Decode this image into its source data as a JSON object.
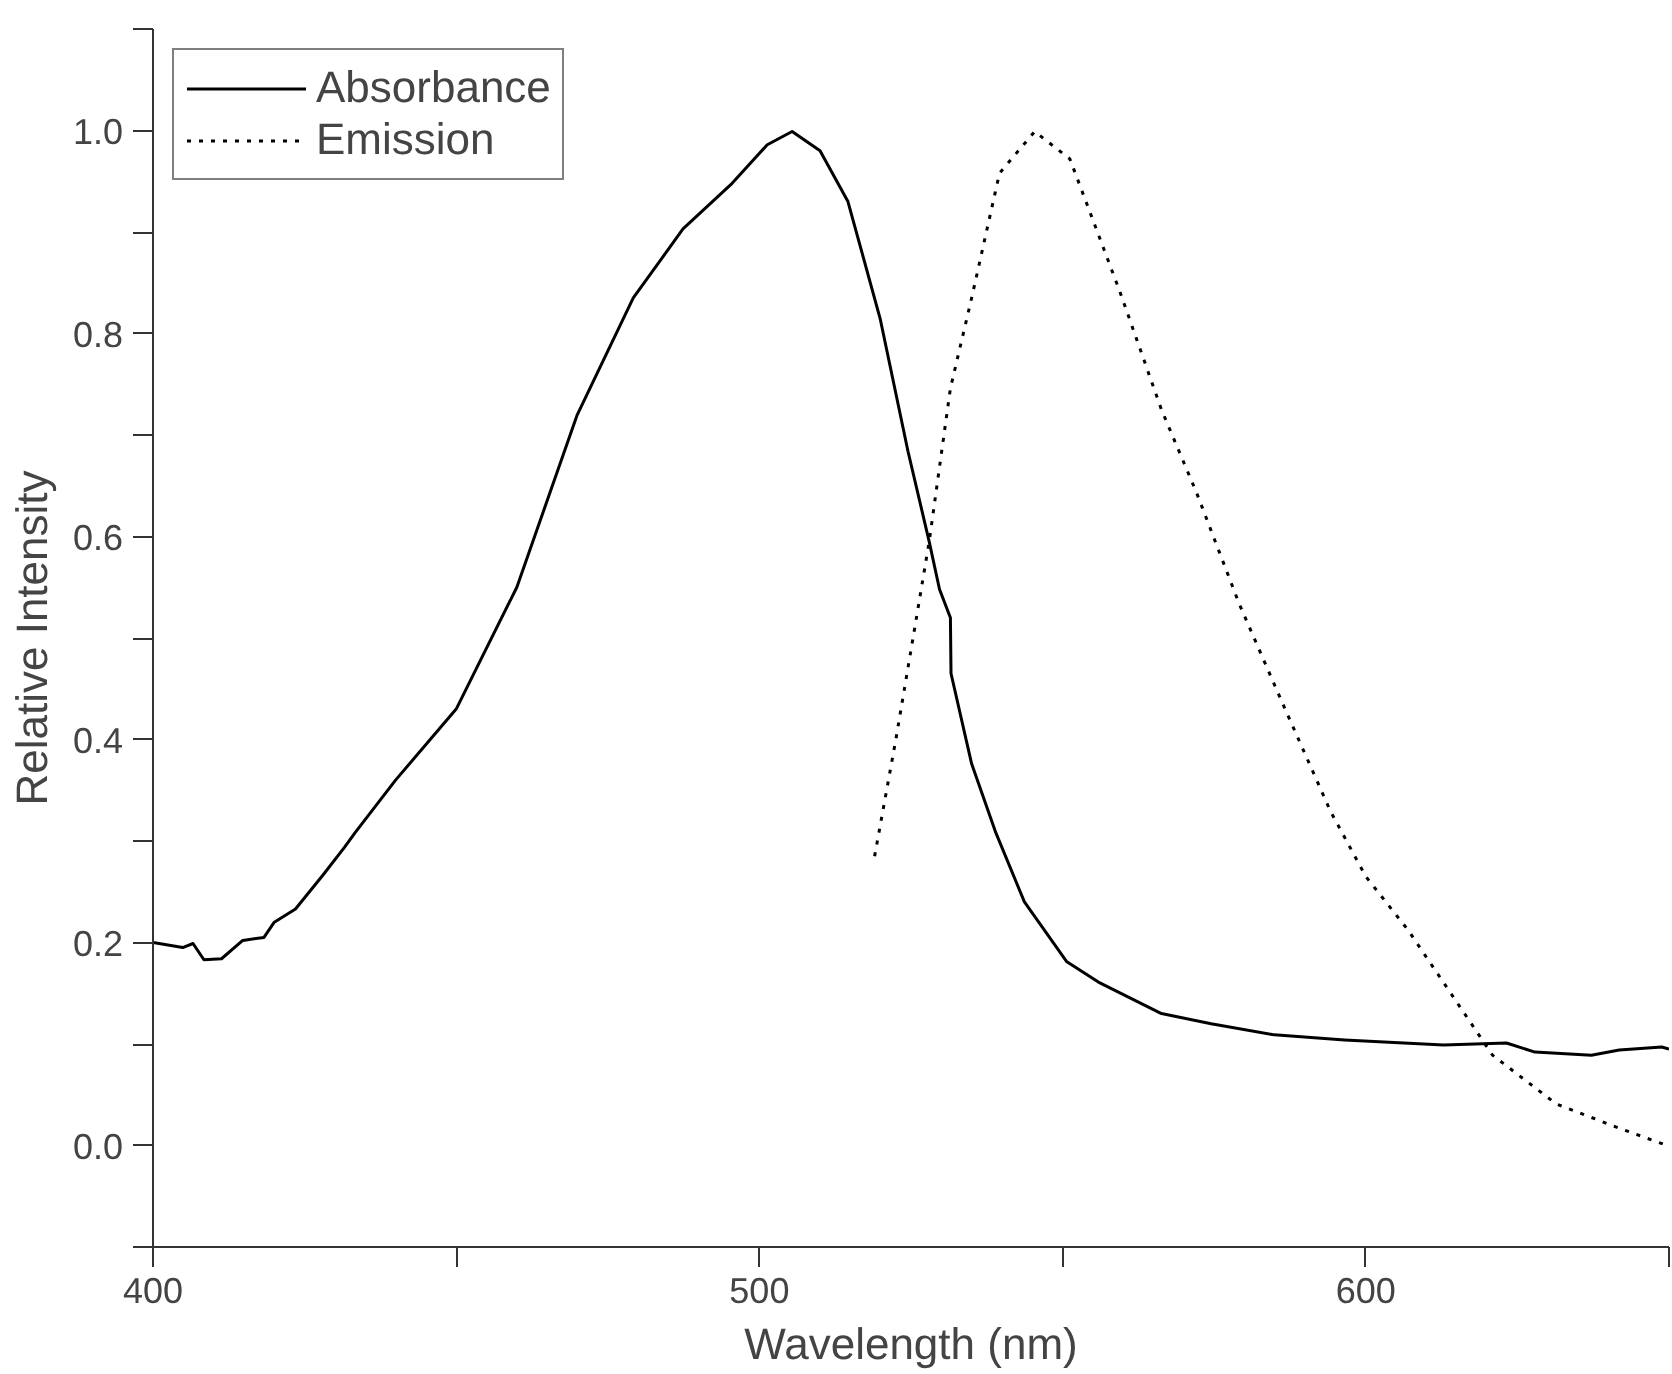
{
  "chart_data": {
    "type": "line",
    "xlabel": "Wavelength (nm)",
    "ylabel": "Relative Intensity",
    "xlim": [
      400,
      650
    ],
    "xticks": [
      400,
      {
        "value": 450,
        "label": null
      },
      500,
      {
        "value": 550,
        "label": null
      },
      600,
      {
        "value": 650,
        "label": null
      }
    ],
    "ylim": [
      -0.1,
      1.1
    ],
    "yticks": [
      {
        "value": -0.1,
        "label": null
      },
      {
        "value": 0,
        "label": "0.0"
      },
      {
        "value": 0.1,
        "label": null
      },
      0.2,
      {
        "value": 0.3,
        "label": null
      },
      0.4,
      {
        "value": 0.5,
        "label": null
      },
      0.6,
      {
        "value": 0.7,
        "label": null
      },
      0.8,
      {
        "value": 0.9,
        "label": null
      },
      {
        "value": 1,
        "label": "1.0"
      },
      {
        "value": 1.1,
        "label": null
      }
    ],
    "grid": false,
    "legend": "top left",
    "marker": "none",
    "series": [
      {
        "name": "Absorbance",
        "color": "#000000",
        "line_style": "solid",
        "x": [
          400,
          404.9,
          406.6,
          408.4,
          411.3,
          414.8,
          418.3,
          420,
          423.5,
          428.1,
          431.6,
          433.3,
          440,
          450,
          460,
          469.9,
          479.2,
          487.4,
          495.5,
          501.3,
          505.4,
          510,
          514.6,
          519.9,
          524.5,
          528.0,
          529.7,
          531.5,
          531.6,
          535.0,
          539.0,
          543.7,
          550.7,
          555.9,
          566.3,
          574.5,
          584.9,
          596.5,
          612.8,
          623.2,
          627.9,
          637.2,
          641.8,
          648.8,
          650
        ],
        "values": [
          0.2,
          0.195,
          0.199,
          0.183,
          0.184,
          0.202,
          0.205,
          0.22,
          0.233,
          0.267,
          0.294,
          0.308,
          0.36,
          0.43,
          0.55,
          0.719,
          0.835,
          0.903,
          0.948,
          0.986,
          0.999,
          0.98,
          0.93,
          0.815,
          0.684,
          0.595,
          0.548,
          0.52,
          0.465,
          0.376,
          0.308,
          0.24,
          0.181,
          0.161,
          0.13,
          0.12,
          0.109,
          0.104,
          0.099,
          0.101,
          0.092,
          0.089,
          0.094,
          0.097,
          0.095
        ]
      },
      {
        "name": "Emission",
        "color": "#000000",
        "line_style": "dotted",
        "x": [
          519.0,
          522.5,
          525.7,
          528.0,
          531.5,
          535.0,
          539.6,
          545.4,
          551.2,
          559.4,
          566.3,
          572.1,
          579.1,
          586.1,
          594.2,
          600,
          607.0,
          613.9,
          620.9,
          631.4,
          641.8,
          649.7
        ],
        "values": [
          0.285,
          0.4,
          0.513,
          0.595,
          0.746,
          0.835,
          0.958,
          0.999,
          0.972,
          0.842,
          0.725,
          0.643,
          0.534,
          0.438,
          0.329,
          0.265,
          0.212,
          0.151,
          0.089,
          0.041,
          0.017,
          0.0
        ]
      }
    ]
  }
}
